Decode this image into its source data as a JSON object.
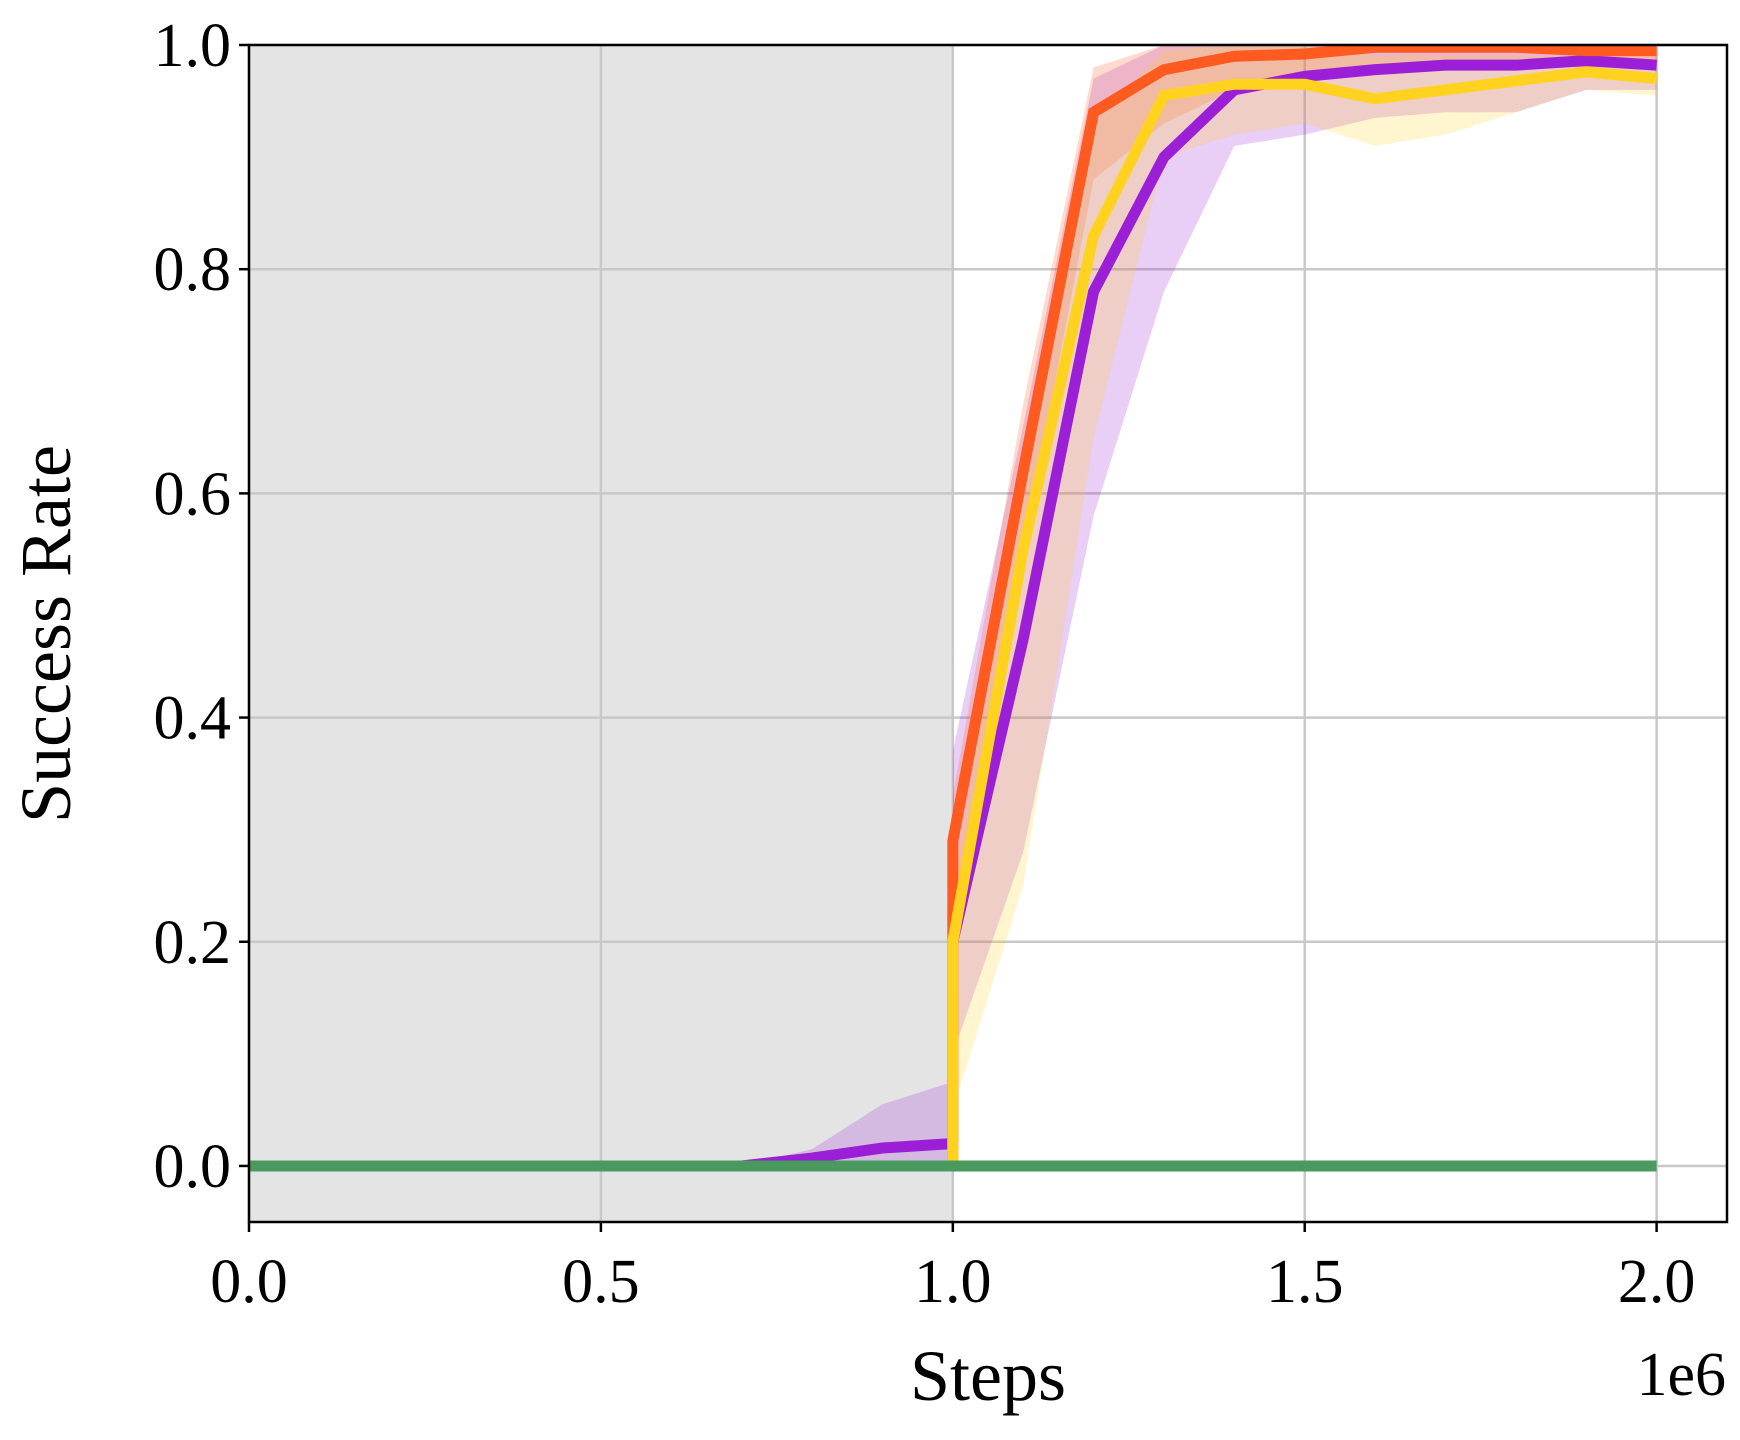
{
  "chart_data": {
    "type": "line",
    "xlabel": "Steps",
    "ylabel": "Success Rate",
    "x_offset_label": "1e6",
    "xlim": [
      0.0,
      2.1
    ],
    "ylim": [
      -0.05,
      1.0
    ],
    "xticks": [
      "0.0",
      "0.5",
      "1.0",
      "1.5",
      "2.0"
    ],
    "xtick_values": [
      0.0,
      0.5,
      1.0,
      1.5,
      2.0
    ],
    "yticks": [
      "0.0",
      "0.2",
      "0.4",
      "0.6",
      "0.8",
      "1.0"
    ],
    "ytick_values": [
      0.0,
      0.2,
      0.4,
      0.6,
      0.8,
      1.0
    ],
    "grid": true,
    "shaded_region": {
      "x_start": 0.0,
      "x_end": 1.0,
      "color": "#e4e4e4"
    },
    "series": [
      {
        "color": "#9b1fd6",
        "x": [
          0.0,
          0.1,
          0.2,
          0.3,
          0.4,
          0.5,
          0.6,
          0.7,
          0.8,
          0.9,
          1.0,
          1.0,
          1.1,
          1.2,
          1.3,
          1.4,
          1.5,
          1.6,
          1.7,
          1.8,
          1.9,
          2.0
        ],
        "y": [
          0.0,
          0.0,
          0.0,
          0.0,
          0.0,
          0.0,
          0.0,
          0.0,
          0.007,
          0.016,
          0.02,
          0.2,
          0.47,
          0.78,
          0.9,
          0.96,
          0.972,
          0.978,
          0.982,
          0.982,
          0.986,
          0.982
        ],
        "lower": [
          0.0,
          0.0,
          0.0,
          0.0,
          0.0,
          0.0,
          0.0,
          0.0,
          0.0,
          0.0,
          0.0,
          0.1,
          0.28,
          0.58,
          0.78,
          0.91,
          0.92,
          0.935,
          0.94,
          0.94,
          0.96,
          0.96
        ],
        "upper": [
          0.0,
          0.0,
          0.0,
          0.0,
          0.0,
          0.0,
          0.0,
          0.0,
          0.015,
          0.055,
          0.075,
          0.37,
          0.66,
          0.97,
          1.0,
          1.0,
          1.0,
          1.0,
          1.0,
          1.0,
          1.0,
          1.0
        ]
      },
      {
        "color": "#ff5a1f",
        "x": [
          0.0,
          0.1,
          0.2,
          0.3,
          0.4,
          0.5,
          0.6,
          0.7,
          0.8,
          0.9,
          1.0,
          1.0,
          1.1,
          1.2,
          1.3,
          1.4,
          1.5,
          1.6,
          1.7,
          1.8,
          1.9,
          2.0
        ],
        "y": [
          0.0,
          0.0,
          0.0,
          0.0,
          0.0,
          0.0,
          0.0,
          0.0,
          0.0,
          0.0,
          0.0,
          0.29,
          0.62,
          0.94,
          0.978,
          0.99,
          0.992,
          0.998,
          0.998,
          0.998,
          0.995,
          0.995
        ],
        "lower": [
          0.0,
          0.0,
          0.0,
          0.0,
          0.0,
          0.0,
          0.0,
          0.0,
          0.0,
          0.0,
          0.0,
          0.2,
          0.55,
          0.88,
          0.93,
          0.96,
          0.97,
          0.975,
          0.98,
          0.98,
          0.98,
          0.98
        ],
        "upper": [
          0.0,
          0.0,
          0.0,
          0.0,
          0.0,
          0.0,
          0.0,
          0.0,
          0.0,
          0.0,
          0.0,
          0.33,
          0.68,
          0.98,
          1.0,
          1.0,
          1.0,
          1.0,
          1.0,
          1.0,
          1.0,
          1.0
        ]
      },
      {
        "color": "#ffd21f",
        "x": [
          0.0,
          0.1,
          0.2,
          0.3,
          0.4,
          0.5,
          0.6,
          0.7,
          0.8,
          0.9,
          1.0,
          1.0,
          1.1,
          1.2,
          1.3,
          1.4,
          1.5,
          1.6,
          1.7,
          1.8,
          1.9,
          2.0
        ],
        "y": [
          0.0,
          0.0,
          0.0,
          0.0,
          0.0,
          0.0,
          0.0,
          0.0,
          0.0,
          0.0,
          0.0,
          0.2,
          0.55,
          0.83,
          0.955,
          0.965,
          0.965,
          0.952,
          0.96,
          0.968,
          0.976,
          0.97
        ],
        "lower": [
          0.0,
          0.0,
          0.0,
          0.0,
          0.0,
          0.0,
          0.0,
          0.0,
          0.0,
          0.0,
          0.0,
          0.05,
          0.25,
          0.65,
          0.9,
          0.92,
          0.93,
          0.91,
          0.92,
          0.94,
          0.96,
          0.955
        ],
        "upper": [
          0.0,
          0.0,
          0.0,
          0.0,
          0.0,
          0.0,
          0.0,
          0.0,
          0.0,
          0.0,
          0.0,
          0.25,
          0.62,
          0.93,
          0.995,
          1.0,
          1.0,
          0.99,
          0.99,
          0.99,
          0.99,
          0.99
        ],
        "dy": [
          0.0
        ]
      },
      {
        "color": "#4a9a60",
        "x": [
          0.0,
          2.0
        ],
        "y": [
          0.0,
          0.0
        ],
        "lower": [
          0.0,
          0.0
        ],
        "upper": [
          0.0,
          0.0
        ]
      }
    ]
  }
}
